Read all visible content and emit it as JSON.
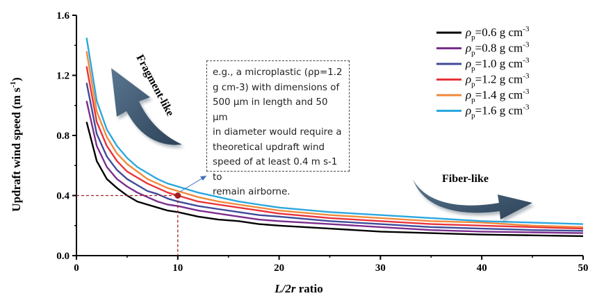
{
  "chart_data": {
    "type": "line",
    "xlabel_parts": [
      "L/2r",
      " ratio"
    ],
    "ylabel_main": "Updraft wind speed (m s",
    "ylabel_sup": "-1",
    "ylabel_close": ")",
    "xlim": [
      0,
      50
    ],
    "ylim": [
      0.0,
      1.6
    ],
    "x_ticks": [
      "0",
      "10",
      "20",
      "30",
      "40",
      "50"
    ],
    "y_ticks": [
      "0.0",
      "0.4",
      "0.8",
      "1.2",
      "1.6"
    ],
    "x": [
      1,
      2,
      3,
      4,
      5,
      6,
      7,
      8,
      9,
      10,
      12,
      14,
      16,
      18,
      20,
      25,
      30,
      35,
      40,
      45,
      50
    ],
    "series": [
      {
        "name": "ρp=0.6 g cm-3",
        "legend_rho": "ρ",
        "legend_sub": "p",
        "legend_val": "=0.6 g cm",
        "legend_sup": "-3",
        "color": "#000000",
        "values": [
          0.89,
          0.63,
          0.51,
          0.45,
          0.4,
          0.36,
          0.34,
          0.32,
          0.3,
          0.29,
          0.26,
          0.24,
          0.23,
          0.21,
          0.2,
          0.18,
          0.16,
          0.15,
          0.14,
          0.135,
          0.13
        ]
      },
      {
        "name": "ρp=0.8 g cm-3",
        "legend_rho": "ρ",
        "legend_sub": "p",
        "legend_val": "=0.8 g cm",
        "legend_sup": "-3",
        "color": "#7b2d8e",
        "values": [
          1.03,
          0.73,
          0.59,
          0.51,
          0.46,
          0.42,
          0.39,
          0.36,
          0.34,
          0.33,
          0.3,
          0.28,
          0.26,
          0.24,
          0.23,
          0.21,
          0.19,
          0.17,
          0.16,
          0.155,
          0.15
        ]
      },
      {
        "name": "ρp=1.0 g cm-3",
        "legend_rho": "ρ",
        "legend_sub": "p",
        "legend_val": "=1.0 g cm",
        "legend_sup": "-3",
        "color": "#3f4a9a",
        "values": [
          1.15,
          0.81,
          0.66,
          0.57,
          0.51,
          0.47,
          0.43,
          0.41,
          0.38,
          0.36,
          0.33,
          0.31,
          0.29,
          0.27,
          0.26,
          0.23,
          0.21,
          0.19,
          0.18,
          0.17,
          0.165
        ]
      },
      {
        "name": "ρp=1.2 g cm-3",
        "legend_rho": "ρ",
        "legend_sub": "p",
        "legend_val": "=1.2 g cm",
        "legend_sup": "-3",
        "color": "#e8333a",
        "values": [
          1.26,
          0.89,
          0.73,
          0.63,
          0.56,
          0.52,
          0.48,
          0.45,
          0.42,
          0.4,
          0.36,
          0.34,
          0.32,
          0.3,
          0.28,
          0.25,
          0.23,
          0.21,
          0.2,
          0.19,
          0.18
        ]
      },
      {
        "name": "ρp=1.4 g cm-3",
        "legend_rho": "ρ",
        "legend_sub": "p",
        "legend_val": "=1.4 g cm",
        "legend_sup": "-3",
        "color": "#f08a3c",
        "values": [
          1.36,
          0.96,
          0.79,
          0.68,
          0.61,
          0.56,
          0.51,
          0.48,
          0.45,
          0.43,
          0.39,
          0.36,
          0.34,
          0.32,
          0.3,
          0.27,
          0.25,
          0.23,
          0.22,
          0.2,
          0.19
        ]
      },
      {
        "name": "ρp=1.6 g cm-3",
        "legend_rho": "ρ",
        "legend_sub": "p",
        "legend_val": "=1.6 g cm",
        "legend_sup": "-3",
        "color": "#2aa7df",
        "values": [
          1.45,
          1.03,
          0.84,
          0.73,
          0.65,
          0.59,
          0.55,
          0.51,
          0.48,
          0.46,
          0.42,
          0.39,
          0.36,
          0.34,
          0.32,
          0.29,
          0.27,
          0.25,
          0.23,
          0.22,
          0.21
        ]
      }
    ],
    "highlight_point": {
      "x": 10,
      "y": 0.4,
      "color": "#a32020"
    },
    "annotation_lines": [
      "e.g., a microplastic (ρp=1.2",
      "g cm-3) with dimensions of",
      "500 μm in length and 50 μm",
      "in diameter would require a",
      "theoretical updraft wind",
      "speed of at least 0.4 m s-1  to",
      "remain airborne."
    ],
    "arrow_labels": {
      "fragment": "Fragment-like",
      "fiber": "Fiber-like"
    },
    "arrow_color": "#3f5a73",
    "legend_position": "top-right",
    "grid": false
  }
}
